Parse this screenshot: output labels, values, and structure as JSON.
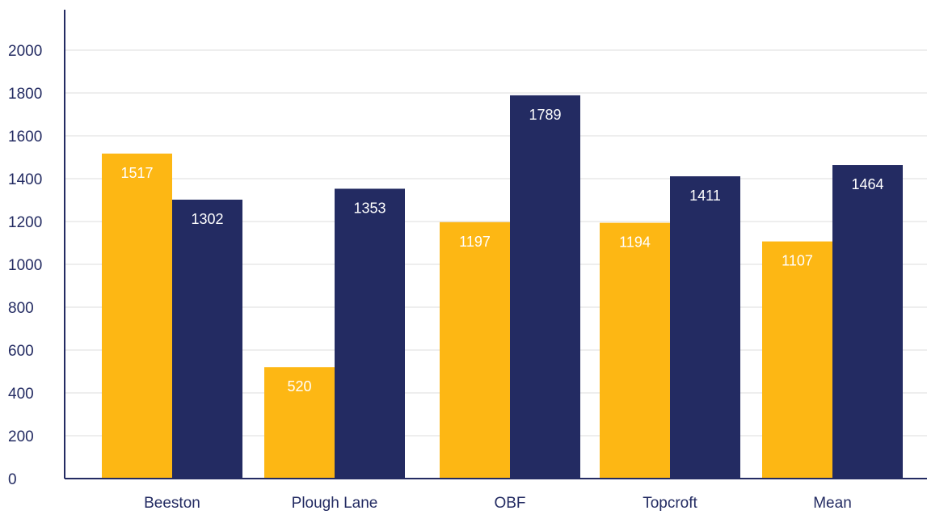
{
  "chart_data": {
    "type": "bar",
    "title": "",
    "xlabel": "",
    "ylabel": "",
    "categories": [
      "Beeston",
      "Plough Lane",
      "OBF",
      "Topcroft",
      "Mean"
    ],
    "series": [
      {
        "values": [
          1517,
          520,
          1197,
          1194,
          1107
        ],
        "color": "#fdb714"
      },
      {
        "values": [
          1302,
          1353,
          1789,
          1411,
          1464
        ],
        "color": "#232b62"
      }
    ],
    "ylim": [
      0,
      2000
    ],
    "y_ticks": [
      0,
      200,
      400,
      600,
      800,
      1000,
      1200,
      1400,
      1600,
      1800,
      2000
    ],
    "grid": true,
    "legend": "none",
    "data_labels": true,
    "colors": {
      "axis": "#232b62",
      "grid": "#dcdcdc",
      "label_text": "#ffffff",
      "tick_text": "#232b62"
    }
  }
}
